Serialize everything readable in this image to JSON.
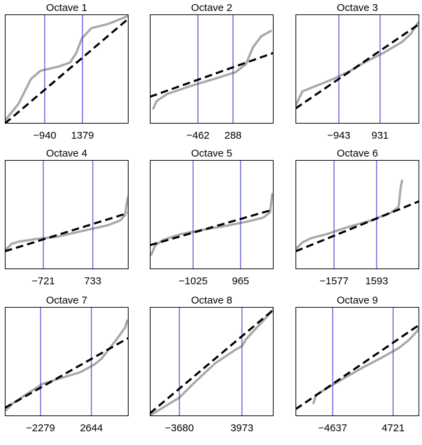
{
  "colors": {
    "points": "#a8a8a8",
    "fit_line": "#000000",
    "markers": "#2222cc",
    "frame": "#000000"
  },
  "chart_data": [
    {
      "type": "scatter",
      "title": "Octave 1",
      "markers": [
        -940,
        1379
      ],
      "marker_labels": [
        "−940",
        "1379"
      ]
    },
    {
      "type": "scatter",
      "title": "Octave 2",
      "markers": [
        -462,
        288
      ],
      "marker_labels": [
        "−462",
        "288"
      ]
    },
    {
      "type": "scatter",
      "title": "Octave 3",
      "markers": [
        -943,
        931
      ],
      "marker_labels": [
        "−943",
        "931"
      ]
    },
    {
      "type": "scatter",
      "title": "Octave 4",
      "markers": [
        -721,
        733
      ],
      "marker_labels": [
        "−721",
        "733"
      ]
    },
    {
      "type": "scatter",
      "title": "Octave 5",
      "markers": [
        -1025,
        965
      ],
      "marker_labels": [
        "−1025",
        "965"
      ]
    },
    {
      "type": "scatter",
      "title": "Octave 6",
      "markers": [
        -1577,
        1593
      ],
      "marker_labels": [
        "−1577",
        "1593"
      ]
    },
    {
      "type": "scatter",
      "title": "Octave 7",
      "markers": [
        -2279,
        2644
      ],
      "marker_labels": [
        "−2279",
        "2644"
      ]
    },
    {
      "type": "scatter",
      "title": "Octave 8",
      "markers": [
        -3680,
        3973
      ],
      "marker_labels": [
        "−3680",
        "3973"
      ]
    },
    {
      "type": "scatter",
      "title": "Octave 9",
      "markers": [
        -4637,
        4721
      ],
      "marker_labels": [
        "−4637",
        "4721"
      ]
    }
  ]
}
